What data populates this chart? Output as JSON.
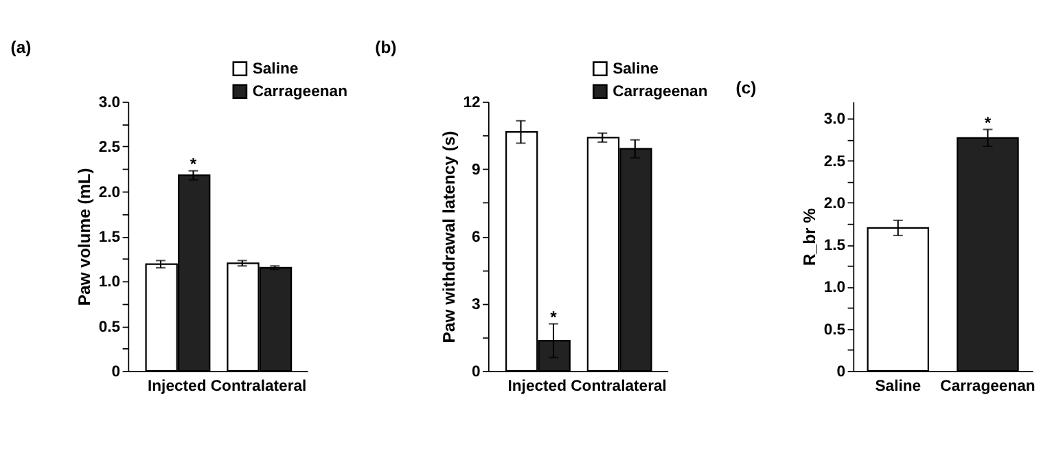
{
  "chart_data": [
    {
      "type": "bar",
      "title": "(a)",
      "ylabel": "Paw volume (mL)",
      "categories": [
        "Injected",
        "Contralateral"
      ],
      "series": [
        {
          "name": "Saline",
          "color": "#ffffff",
          "values": [
            1.19,
            1.2
          ],
          "errors": [
            0.04,
            0.03
          ]
        },
        {
          "name": "Carrageenan",
          "color": "#222222",
          "values": [
            2.18,
            1.15
          ],
          "errors": [
            0.05,
            0.02
          ]
        }
      ],
      "ylim": [
        0,
        3
      ],
      "yticks": [
        0,
        {
          "value": 0.25,
          "label": null
        },
        0.5,
        {
          "value": 0.75,
          "label": null
        },
        {
          "value": 1,
          "label": "1.0"
        },
        {
          "value": 1.25,
          "label": null
        },
        1.5,
        {
          "value": 1.75,
          "label": null
        },
        {
          "value": 2,
          "label": "2.0"
        },
        {
          "value": 2.25,
          "label": null
        },
        2.5,
        {
          "value": 2.75,
          "label": null
        },
        {
          "value": 3,
          "label": "3.0"
        }
      ],
      "legend": "top right",
      "annotations": [
        {
          "text": "*",
          "x": "Injected",
          "y": 2.23
        }
      ]
    },
    {
      "type": "bar",
      "title": "(b)",
      "ylabel": "Paw withdrawal latency (s)",
      "categories": [
        "Injected",
        "Contralateral"
      ],
      "series": [
        {
          "name": "Saline",
          "color": "#ffffff",
          "values": [
            10.65,
            10.4
          ],
          "errors": [
            0.5,
            0.2
          ]
        },
        {
          "name": "Carrageenan",
          "color": "#222222",
          "values": [
            1.35,
            9.9
          ],
          "errors": [
            0.75,
            0.4
          ]
        }
      ],
      "ylim": [
        0,
        12
      ],
      "yticks": [
        0,
        {
          "value": 1.5,
          "label": null
        },
        3,
        {
          "value": 4.5,
          "label": null
        },
        6,
        {
          "value": 7.5,
          "label": null
        },
        9,
        {
          "value": 10.5,
          "label": null
        },
        12
      ],
      "legend": "top right",
      "annotations": [
        {
          "text": "*",
          "x": "Injected",
          "y": 2.1
        }
      ]
    },
    {
      "type": "bar",
      "title": "(c)",
      "ylabel": "R_br %",
      "categories": [
        "Saline",
        "Carrageenan"
      ],
      "values": [
        1.7,
        2.77
      ],
      "errors": [
        0.09,
        0.1
      ],
      "colors": [
        "#ffffff",
        "#222222"
      ],
      "ylim": [
        0,
        3.2
      ],
      "yticks": [
        0,
        {
          "value": 0.25,
          "label": null
        },
        0.5,
        {
          "value": 0.75,
          "label": null
        },
        {
          "value": 1,
          "label": "1.0"
        },
        {
          "value": 1.25,
          "label": null
        },
        1.5,
        {
          "value": 1.75,
          "label": null
        },
        {
          "value": 2,
          "label": "2.0"
        },
        {
          "value": 2.25,
          "label": null
        },
        2.5,
        {
          "value": 2.75,
          "label": null
        },
        {
          "value": 3,
          "label": "3.0"
        }
      ],
      "annotations": [
        {
          "text": "*",
          "x": "Carrageenan",
          "y": 2.87
        }
      ]
    }
  ]
}
